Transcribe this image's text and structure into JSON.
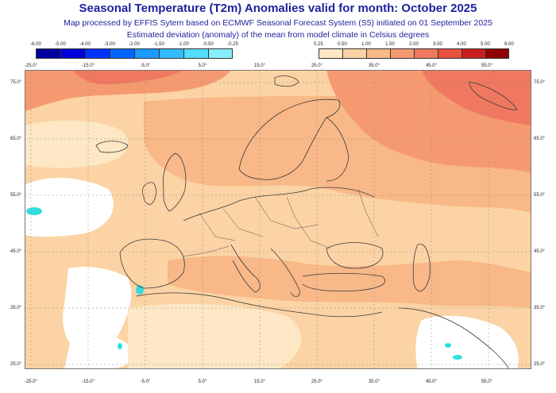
{
  "title": "Seasonal Temperature (T2m) Anomalies valid for month: October 2025",
  "subtitle1": "Map processed by EFFIS Sytem based on ECMWF Seasonal Forecast System (S5) initiated on 01 September 2025",
  "subtitle2": "Estimated deviation (anomaly) of the mean from model climate in Celsius degrees",
  "legend_negative": {
    "labels": [
      "-6.00",
      "-5.00",
      "-4.00",
      "-3.00",
      "-2.00",
      "-1.50",
      "-1.00",
      "-0.50",
      "-0.25"
    ],
    "colors": [
      "#0000a0",
      "#0000d8",
      "#0033ff",
      "#0066ff",
      "#1a99ff",
      "#33bbff",
      "#55ddff",
      "#88eeff"
    ]
  },
  "legend_positive": {
    "labels": [
      "0.25",
      "0.50",
      "1.00",
      "1.50",
      "2.00",
      "3.00",
      "4.00",
      "5.00",
      "6.00"
    ],
    "colors": [
      "#fde7c4",
      "#fbd3a4",
      "#f8b887",
      "#f59a70",
      "#f07860",
      "#e8503f",
      "#c91e1e",
      "#8f0000"
    ]
  },
  "longitude_labels": [
    "-25.0°",
    "-15.0°",
    "-5.0°",
    "5.0°",
    "15.0°",
    "25.0°",
    "35.0°",
    "45.0°",
    "55.0°"
  ],
  "latitude_labels": [
    "75.0°",
    "65.0°",
    "55.0°",
    "45.0°",
    "35.0°",
    "25.0°"
  ],
  "map_colors": {
    "land_outline": "#3a3a3a",
    "ocean_no_anomaly": "#ffffff",
    "cold_spot": "#33dddd",
    "warm_max": "#f07860"
  }
}
